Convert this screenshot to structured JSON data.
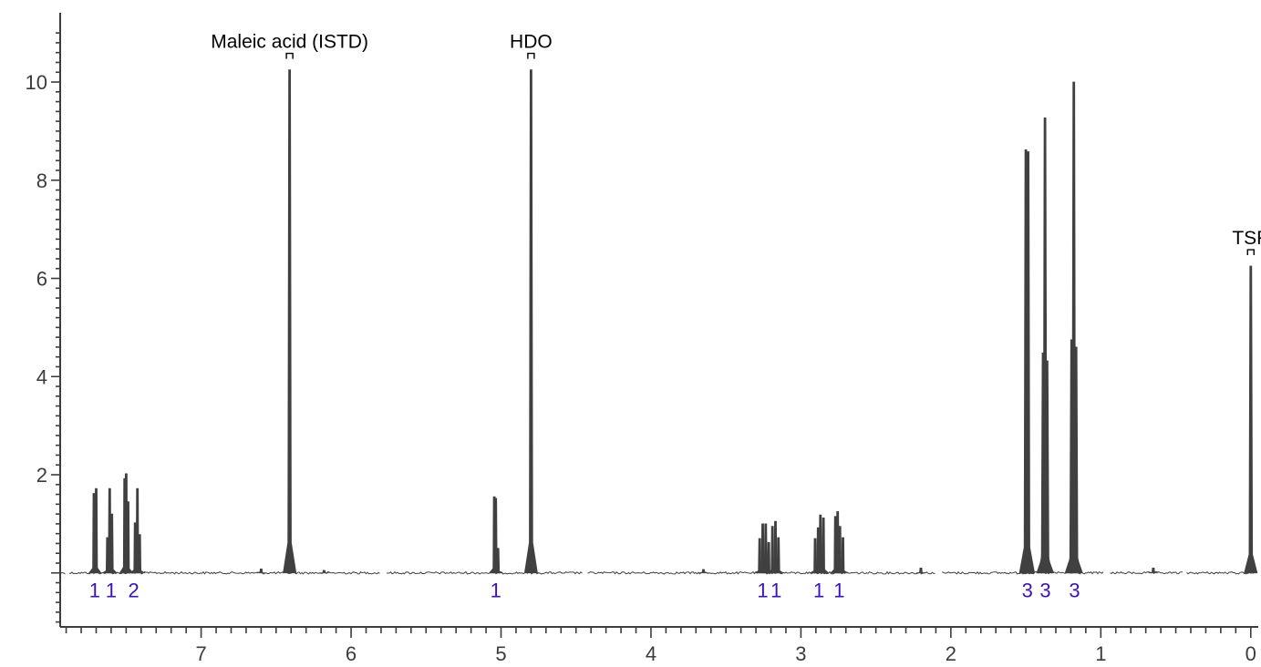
{
  "chart_data": {
    "type": "line",
    "title": "",
    "xlabel": "",
    "ylabel": "",
    "x_reversed": true,
    "xlim": [
      7.94,
      -0.05
    ],
    "ylim": [
      -1.1,
      11.3
    ],
    "x_major_ticks": [
      7,
      6,
      5,
      4,
      3,
      2,
      1,
      0
    ],
    "x_tick_labels": [
      "7",
      "6",
      "5",
      "4",
      "3",
      "2",
      "1",
      "0"
    ],
    "y_major_ticks": [
      2,
      4,
      6,
      8,
      10
    ],
    "y_tick_labels": [
      "2",
      "4",
      "6",
      "8",
      "10"
    ],
    "grid": false,
    "series_color": "#404040",
    "integral_color": "#3a12c0",
    "peaks": [
      {
        "x": 7.715,
        "y": 1.62
      },
      {
        "x": 7.7,
        "y": 1.72
      },
      {
        "x": 7.625,
        "y": 0.72
      },
      {
        "x": 7.61,
        "y": 1.72
      },
      {
        "x": 7.595,
        "y": 1.2
      },
      {
        "x": 7.51,
        "y": 1.92
      },
      {
        "x": 7.5,
        "y": 2.02
      },
      {
        "x": 7.487,
        "y": 1.45
      },
      {
        "x": 7.44,
        "y": 1.02
      },
      {
        "x": 7.425,
        "y": 1.72
      },
      {
        "x": 7.41,
        "y": 0.78
      },
      {
        "x": 6.41,
        "y": 10.25
      },
      {
        "x": 5.045,
        "y": 1.55
      },
      {
        "x": 5.035,
        "y": 1.52
      },
      {
        "x": 5.02,
        "y": 0.5
      },
      {
        "x": 4.8,
        "y": 10.25
      },
      {
        "x": 3.275,
        "y": 0.7
      },
      {
        "x": 3.255,
        "y": 1.0
      },
      {
        "x": 3.235,
        "y": 1.0
      },
      {
        "x": 3.215,
        "y": 0.62
      },
      {
        "x": 3.19,
        "y": 0.95
      },
      {
        "x": 3.17,
        "y": 1.05
      },
      {
        "x": 3.15,
        "y": 0.72
      },
      {
        "x": 2.905,
        "y": 0.7
      },
      {
        "x": 2.885,
        "y": 0.92
      },
      {
        "x": 2.87,
        "y": 1.18
      },
      {
        "x": 2.85,
        "y": 1.12
      },
      {
        "x": 2.77,
        "y": 1.15
      },
      {
        "x": 2.755,
        "y": 1.25
      },
      {
        "x": 2.74,
        "y": 0.95
      },
      {
        "x": 2.72,
        "y": 0.72
      },
      {
        "x": 1.5,
        "y": 8.62
      },
      {
        "x": 1.485,
        "y": 8.58
      },
      {
        "x": 1.385,
        "y": 4.48
      },
      {
        "x": 1.372,
        "y": 9.27
      },
      {
        "x": 1.358,
        "y": 4.32
      },
      {
        "x": 1.195,
        "y": 4.75
      },
      {
        "x": 1.18,
        "y": 10.0
      },
      {
        "x": 1.165,
        "y": 4.6
      },
      {
        "x": 0.0,
        "y": 6.25
      },
      {
        "x": 6.6,
        "y": 0.08
      },
      {
        "x": 6.18,
        "y": 0.05
      },
      {
        "x": 3.65,
        "y": 0.07
      },
      {
        "x": 2.2,
        "y": 0.1
      },
      {
        "x": 0.65,
        "y": 0.1
      }
    ],
    "annotations": [
      {
        "text": "Maleic acid (ISTD)",
        "x": 6.41,
        "y": 10.25
      },
      {
        "text": "HDO",
        "x": 4.8,
        "y": 10.25
      },
      {
        "text": "TSP",
        "x": 0.0,
        "y": 6.25
      }
    ],
    "integrals": [
      {
        "text": "1",
        "x": 7.71
      },
      {
        "text": "1",
        "x": 7.6
      },
      {
        "text": "2",
        "x": 7.45
      },
      {
        "text": "1",
        "x": 5.035
      },
      {
        "text": "1",
        "x": 3.255
      },
      {
        "text": "1",
        "x": 3.165
      },
      {
        "text": "1",
        "x": 2.88
      },
      {
        "text": "1",
        "x": 2.745
      },
      {
        "text": "3",
        "x": 1.49
      },
      {
        "text": "3",
        "x": 1.37
      },
      {
        "text": "3",
        "x": 1.175
      }
    ]
  }
}
